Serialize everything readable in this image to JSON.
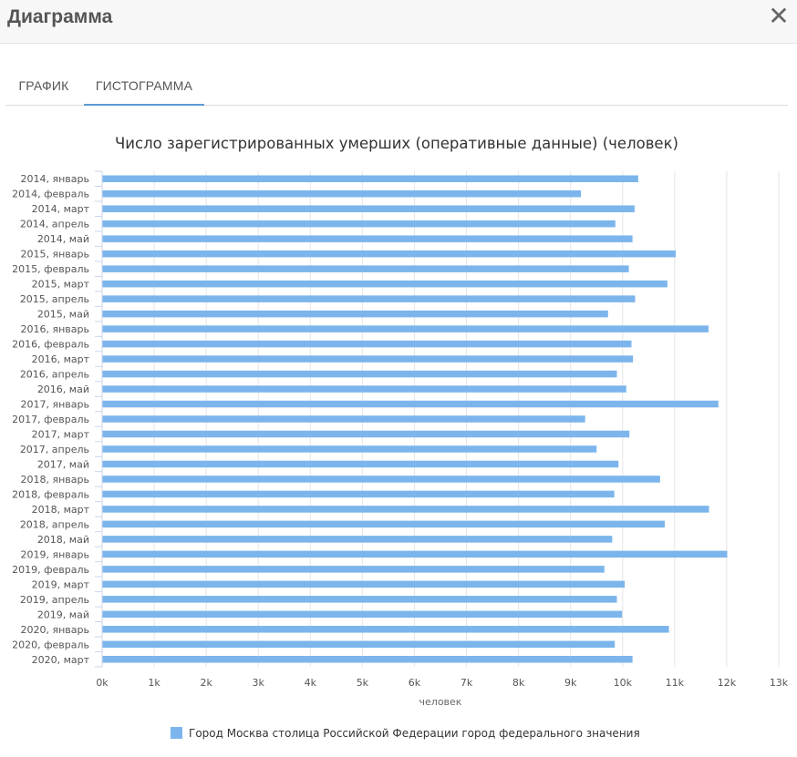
{
  "dialog": {
    "title": "Диаграмма",
    "close_icon": "close-icon",
    "close_glyph": "✕"
  },
  "tabs": [
    {
      "label": "ГРАФИК",
      "active": false
    },
    {
      "label": "ГИСТОГРАММА",
      "active": true
    }
  ],
  "colors": {
    "bar": "#7cb5ec",
    "accent": "#5b9bd5",
    "grid": "#e6e6e6"
  },
  "chart_data": {
    "type": "bar",
    "orientation": "horizontal",
    "title": "Число зарегистрированных умерших (оперативные данные) (человек)",
    "xlabel": "человек",
    "ylabel": "",
    "xlim": [
      0,
      13000
    ],
    "grid": true,
    "legend_position": "bottom-center",
    "x_tick_labels": [
      "0k",
      "1k",
      "2k",
      "3k",
      "4k",
      "5k",
      "6k",
      "7k",
      "8k",
      "9k",
      "10k",
      "11k",
      "12k",
      "13k"
    ],
    "x_tick_values": [
      0,
      1000,
      2000,
      3000,
      4000,
      5000,
      6000,
      7000,
      8000,
      9000,
      10000,
      11000,
      12000,
      13000
    ],
    "categories": [
      "2014, январь",
      "2014, февраль",
      "2014, март",
      "2014, апрель",
      "2014, май",
      "2015, январь",
      "2015, февраль",
      "2015, март",
      "2015, апрель",
      "2015, май",
      "2016, январь",
      "2016, февраль",
      "2016, март",
      "2016, апрель",
      "2016, май",
      "2017, январь",
      "2017, февраль",
      "2017, март",
      "2017, апрель",
      "2017, май",
      "2018, январь",
      "2018, февраль",
      "2018, март",
      "2018, апрель",
      "2018, май",
      "2019, январь",
      "2019, февраль",
      "2019, март",
      "2019, апрель",
      "2019, май",
      "2020, январь",
      "2020, февраль",
      "2020, март"
    ],
    "series": [
      {
        "name": "Город Москва столица Российской Федерации город федерального значения",
        "values": [
          10300,
          9200,
          10230,
          9860,
          10190,
          11020,
          10120,
          10860,
          10240,
          9720,
          11650,
          10170,
          10200,
          9890,
          10070,
          11840,
          9280,
          10130,
          9500,
          9920,
          10720,
          9840,
          11660,
          10810,
          9800,
          12010,
          9650,
          10040,
          9890,
          9990,
          10890,
          9850,
          10190
        ]
      }
    ]
  }
}
